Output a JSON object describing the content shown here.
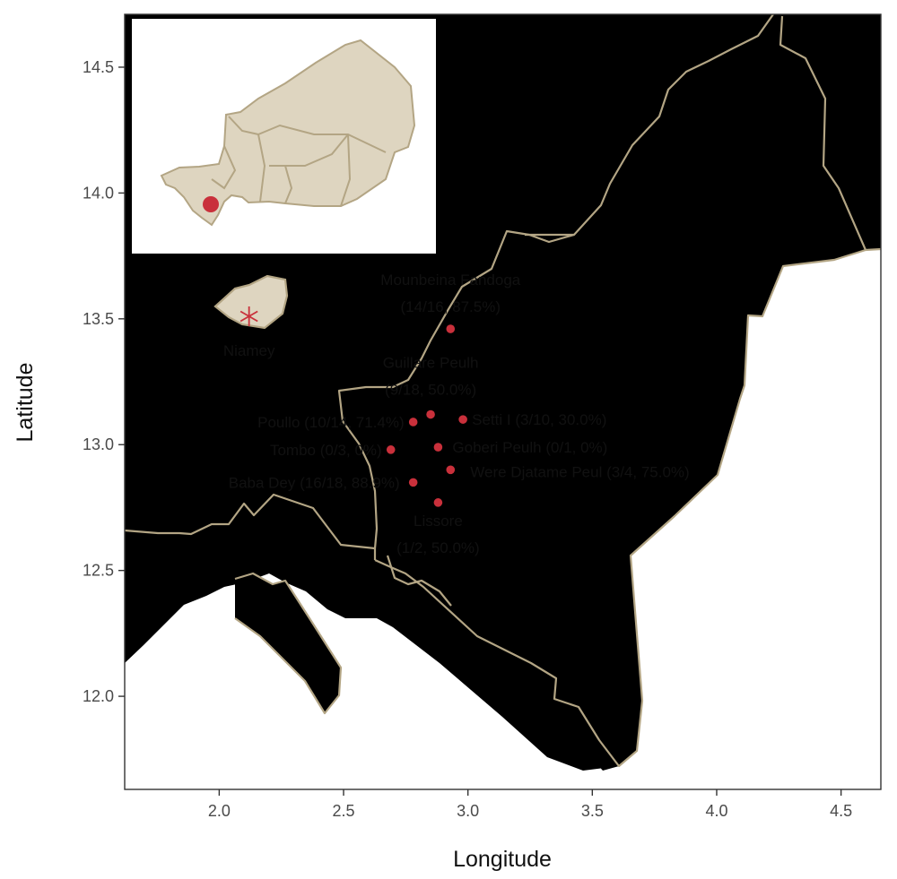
{
  "colors": {
    "land": "#DED5C0",
    "border": "#B3A584",
    "point": "#C9303B",
    "panel_border": "#333333",
    "inset_background": "#FFFFFF"
  },
  "axes": {
    "x_title": "Longitude",
    "y_title": "Latitude",
    "x_ticks": [
      {
        "value": 2.0,
        "label": "2.0"
      },
      {
        "value": 2.5,
        "label": "2.5"
      },
      {
        "value": 3.0,
        "label": "3.0"
      },
      {
        "value": 3.5,
        "label": "3.5"
      },
      {
        "value": 4.0,
        "label": "4.0"
      },
      {
        "value": 4.5,
        "label": "4.5"
      }
    ],
    "y_ticks": [
      {
        "value": 12.0,
        "label": "12.0"
      },
      {
        "value": 12.5,
        "label": "12.5"
      },
      {
        "value": 13.0,
        "label": "13.0"
      },
      {
        "value": 13.5,
        "label": "13.5"
      },
      {
        "value": 14.0,
        "label": "14.0"
      },
      {
        "value": 14.5,
        "label": "14.5"
      }
    ]
  },
  "city": {
    "name": "Niamey",
    "lon": 2.12,
    "lat": 13.51,
    "marker": "asterisk"
  },
  "inset": {
    "description_icon": "niger-locator-map",
    "highlight_marker": "dot"
  },
  "chart_data": {
    "type": "scatter",
    "xlabel": "Longitude",
    "ylabel": "Latitude",
    "xlim": [
      1.62,
      4.66
    ],
    "ylim": [
      11.63,
      14.71
    ],
    "grid": false,
    "points": [
      {
        "name": "Mounbeina Fandoga",
        "stats": "(14/16, 87.5%)",
        "lon": 2.93,
        "lat": 13.46
      },
      {
        "name": "Guillare Peulh",
        "stats": "(9/18, 50.0%)",
        "lon": 2.85,
        "lat": 13.12
      },
      {
        "name": "Setti I",
        "stats": "(3/10, 30.0%)",
        "lon": 2.98,
        "lat": 13.1
      },
      {
        "name": "Poullo",
        "stats": "(10/14, 71.4%)",
        "lon": 2.78,
        "lat": 13.09
      },
      {
        "name": "Tombo",
        "stats": "(0/3, 0%)",
        "lon": 2.69,
        "lat": 12.98
      },
      {
        "name": "Goberi Peulh",
        "stats": "(0/1, 0%)",
        "lon": 2.88,
        "lat": 12.99
      },
      {
        "name": "Were Djatame Peul",
        "stats": "(3/4, 75.0%)",
        "lon": 2.93,
        "lat": 12.9
      },
      {
        "name": "Baba Dey",
        "stats": "(16/18, 88.9%)",
        "lon": 2.78,
        "lat": 12.85
      },
      {
        "name": "Lissore",
        "stats": "(1/2, 50.0%)",
        "lon": 2.88,
        "lat": 12.77
      }
    ]
  }
}
